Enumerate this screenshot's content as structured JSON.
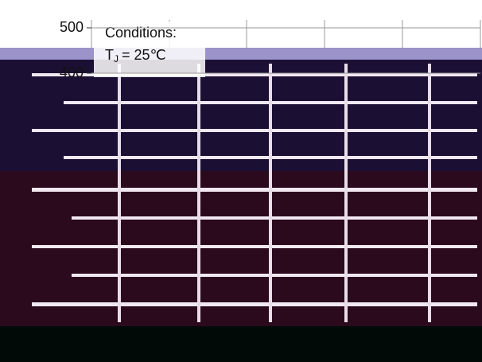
{
  "chart_data": {
    "type": "line",
    "ylim": [
      0,
      500
    ],
    "yticks": [
      400,
      500
    ],
    "grid": true,
    "annotations": {
      "heading": "Conditions:",
      "symbol": "T",
      "subscript": "J",
      "condition": "= 25℃"
    },
    "series": []
  }
}
